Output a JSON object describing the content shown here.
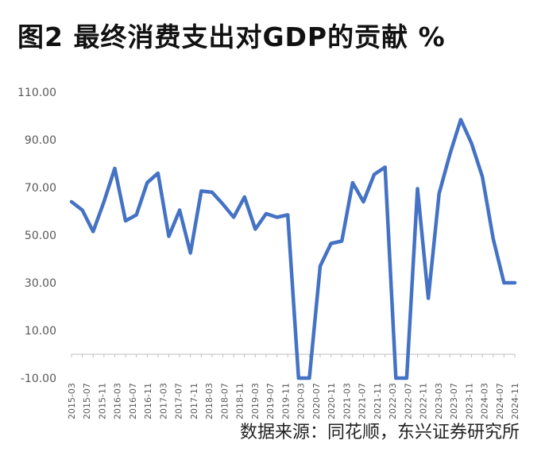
{
  "title": "图2  最终消费支出对GDP的贡献  %",
  "source": "数据来源：同花顺，东兴证券研究所",
  "colors": {
    "line": "#4472C4",
    "axis": "#BFBFBF",
    "text": "#595959"
  },
  "chart_data": {
    "type": "line",
    "title": "图2  最终消费支出对GDP的贡献  %",
    "xlabel": "",
    "ylabel": "",
    "ylim": [
      -10,
      110
    ],
    "yticks": [
      "110.00",
      "90.00",
      "70.00",
      "50.00",
      "30.00",
      "10.00",
      "-10.00"
    ],
    "ytick_values": [
      110,
      90,
      70,
      50,
      30,
      10,
      -10
    ],
    "grid": false,
    "legend": "none",
    "x_labels": [
      "2015-03",
      "2015-07",
      "2015-11",
      "2016-03",
      "2016-07",
      "2016-11",
      "2017-03",
      "2017-07",
      "2017-11",
      "2018-03",
      "2018-07",
      "2018-11",
      "2019-03",
      "2019-07",
      "2019-11",
      "2020-03",
      "2020-07",
      "2020-11",
      "2021-03",
      "2021-07",
      "2021-11",
      "2022-03",
      "2022-07",
      "2022-11",
      "2023-03",
      "2023-07",
      "2023-11",
      "2024-03",
      "2024-07",
      "2024-11"
    ],
    "series": [
      {
        "values": [
          64,
          60.5,
          51.5,
          64,
          78,
          56,
          58.5,
          72,
          76,
          49.5,
          60.5,
          42.5,
          68.5,
          68,
          63,
          57.5,
          66,
          52.5,
          59,
          57.5,
          58.5,
          -10,
          -10,
          37,
          46.5,
          47.5,
          72,
          64,
          75.5,
          78.5,
          -10,
          -10,
          69.5,
          23.5,
          67.5,
          84,
          98.5,
          88.5,
          74.5,
          48.5,
          30,
          30
        ]
      }
    ]
  }
}
